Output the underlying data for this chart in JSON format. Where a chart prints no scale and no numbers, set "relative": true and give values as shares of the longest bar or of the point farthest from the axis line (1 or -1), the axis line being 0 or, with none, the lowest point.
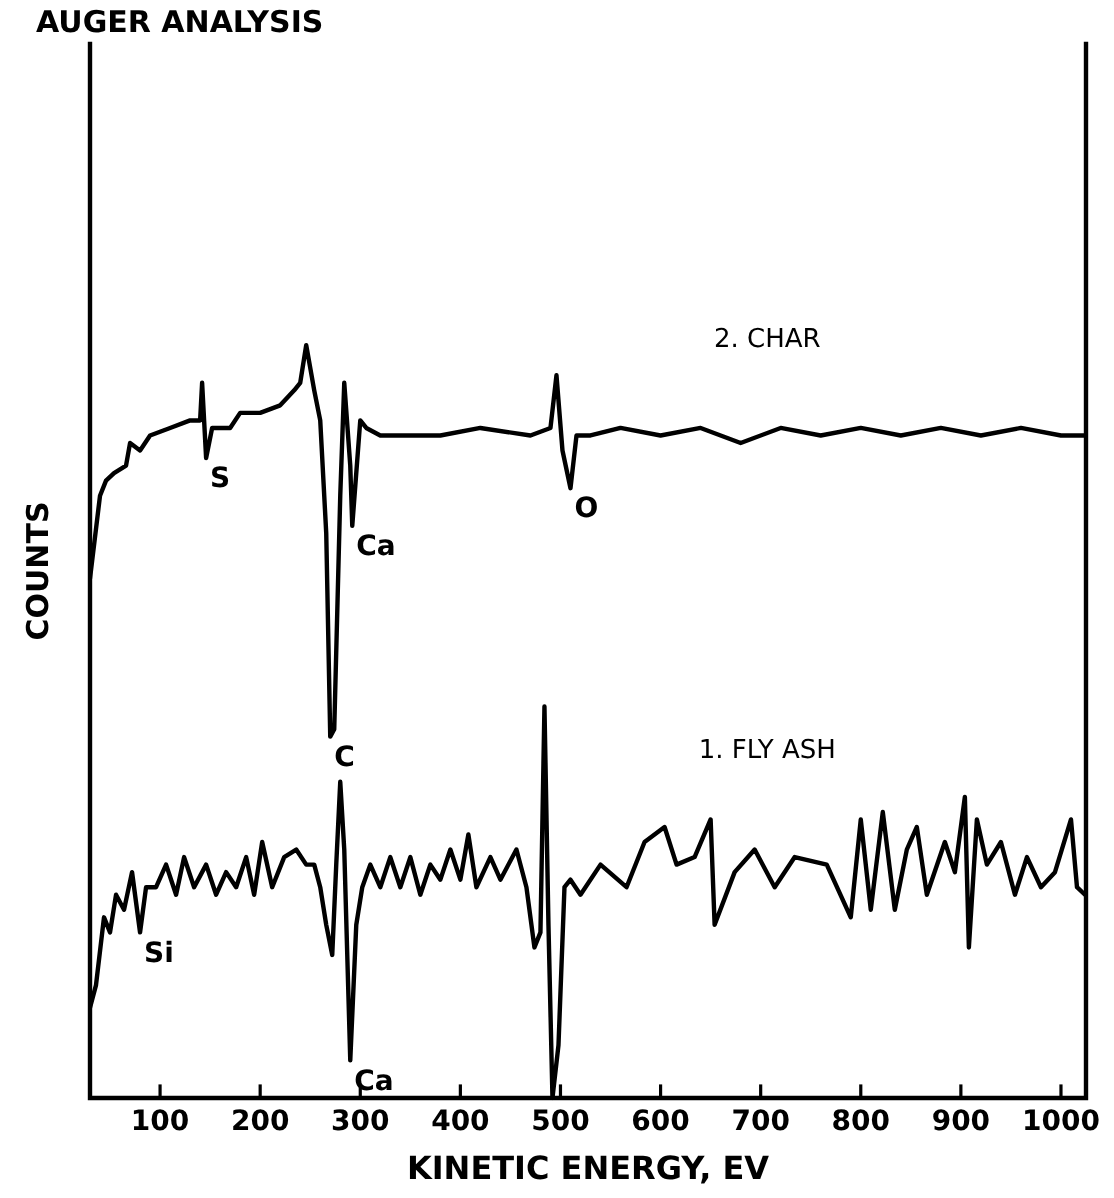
{
  "chart_data": {
    "type": "line",
    "title": "AUGER ANALYSIS",
    "xlabel": "KINETIC ENERGY, EV",
    "ylabel": "COUNTS",
    "relative": true,
    "legend": false,
    "grid": false,
    "marker": "none",
    "line_style": "solid",
    "tick_labels": "x",
    "xlim": [
      30,
      1025
    ],
    "xticks": [
      100,
      200,
      300,
      400,
      500,
      600,
      700,
      800,
      900,
      1000
    ],
    "series": [
      {
        "name": "2. CHAR",
        "color": "#000000",
        "x": [
          30,
          40,
          46,
          54,
          66,
          70,
          80,
          90,
          110,
          130,
          140,
          142,
          146,
          152,
          170,
          180,
          200,
          220,
          234,
          240,
          246,
          254,
          260,
          266,
          270,
          274,
          280,
          284,
          290,
          292,
          300,
          306,
          320,
          340,
          380,
          420,
          470,
          490,
          496,
          502,
          510,
          516,
          530,
          560,
          600,
          640,
          680,
          720,
          760,
          800,
          840,
          880,
          920,
          960,
          1000,
          1024
        ],
        "values": [
          0.69,
          0.8,
          0.82,
          0.83,
          0.84,
          0.87,
          0.86,
          0.88,
          0.89,
          0.9,
          0.9,
          0.95,
          0.85,
          0.89,
          0.89,
          0.91,
          0.91,
          0.92,
          0.94,
          0.95,
          1.0,
          0.94,
          0.9,
          0.75,
          0.48,
          0.49,
          0.8,
          0.95,
          0.84,
          0.76,
          0.9,
          0.89,
          0.88,
          0.88,
          0.88,
          0.89,
          0.88,
          0.89,
          0.96,
          0.86,
          0.81,
          0.88,
          0.88,
          0.89,
          0.88,
          0.89,
          0.87,
          0.89,
          0.88,
          0.89,
          0.88,
          0.89,
          0.88,
          0.89,
          0.88,
          0.88
        ]
      },
      {
        "name": "1. FLY ASH",
        "color": "#000000",
        "x": [
          30,
          36,
          44,
          50,
          56,
          64,
          72,
          80,
          86,
          96,
          106,
          116,
          124,
          134,
          146,
          156,
          166,
          176,
          186,
          194,
          202,
          212,
          224,
          236,
          246,
          254,
          260,
          266,
          272,
          276,
          280,
          284,
          290,
          296,
          302,
          310,
          320,
          330,
          340,
          350,
          360,
          370,
          380,
          390,
          400,
          408,
          416,
          430,
          440,
          456,
          466,
          474,
          480,
          484,
          488,
          492,
          498,
          504,
          510,
          520,
          540,
          566,
          584,
          604,
          616,
          634,
          650,
          654,
          674,
          694,
          714,
          734,
          766,
          790,
          800,
          810,
          822,
          834,
          846,
          856,
          866,
          884,
          894,
          904,
          908,
          916,
          926,
          940,
          954,
          966,
          980,
          994,
          1010,
          1016,
          1024
        ],
        "values": [
          0.12,
          0.15,
          0.24,
          0.22,
          0.27,
          0.25,
          0.3,
          0.22,
          0.28,
          0.28,
          0.31,
          0.27,
          0.32,
          0.28,
          0.31,
          0.27,
          0.3,
          0.28,
          0.32,
          0.27,
          0.34,
          0.28,
          0.32,
          0.33,
          0.31,
          0.31,
          0.28,
          0.23,
          0.19,
          0.31,
          0.42,
          0.33,
          0.05,
          0.23,
          0.28,
          0.31,
          0.28,
          0.32,
          0.28,
          0.32,
          0.27,
          0.31,
          0.29,
          0.33,
          0.29,
          0.35,
          0.28,
          0.32,
          0.29,
          0.33,
          0.28,
          0.2,
          0.22,
          0.52,
          0.23,
          0,
          0.07,
          0.28,
          0.29,
          0.27,
          0.31,
          0.28,
          0.34,
          0.36,
          0.31,
          0.32,
          0.37,
          0.23,
          0.3,
          0.33,
          0.28,
          0.32,
          0.31,
          0.24,
          0.37,
          0.25,
          0.38,
          0.25,
          0.33,
          0.36,
          0.27,
          0.34,
          0.3,
          0.4,
          0.2,
          0.37,
          0.31,
          0.34,
          0.27,
          0.32,
          0.28,
          0.3,
          0.37,
          0.28,
          0.27
        ]
      }
    ],
    "annotations": [
      {
        "text": "S",
        "x": 146,
        "y": 0.85
      },
      {
        "text": "Ca",
        "x": 292,
        "y": 0.76
      },
      {
        "text": "C",
        "x": 270,
        "y": 0.48
      },
      {
        "text": "O",
        "x": 510,
        "y": 0.81
      },
      {
        "text": "Si",
        "x": 80,
        "y": 0.22
      },
      {
        "text": "Ca",
        "x": 290,
        "y": 0.05
      }
    ]
  }
}
